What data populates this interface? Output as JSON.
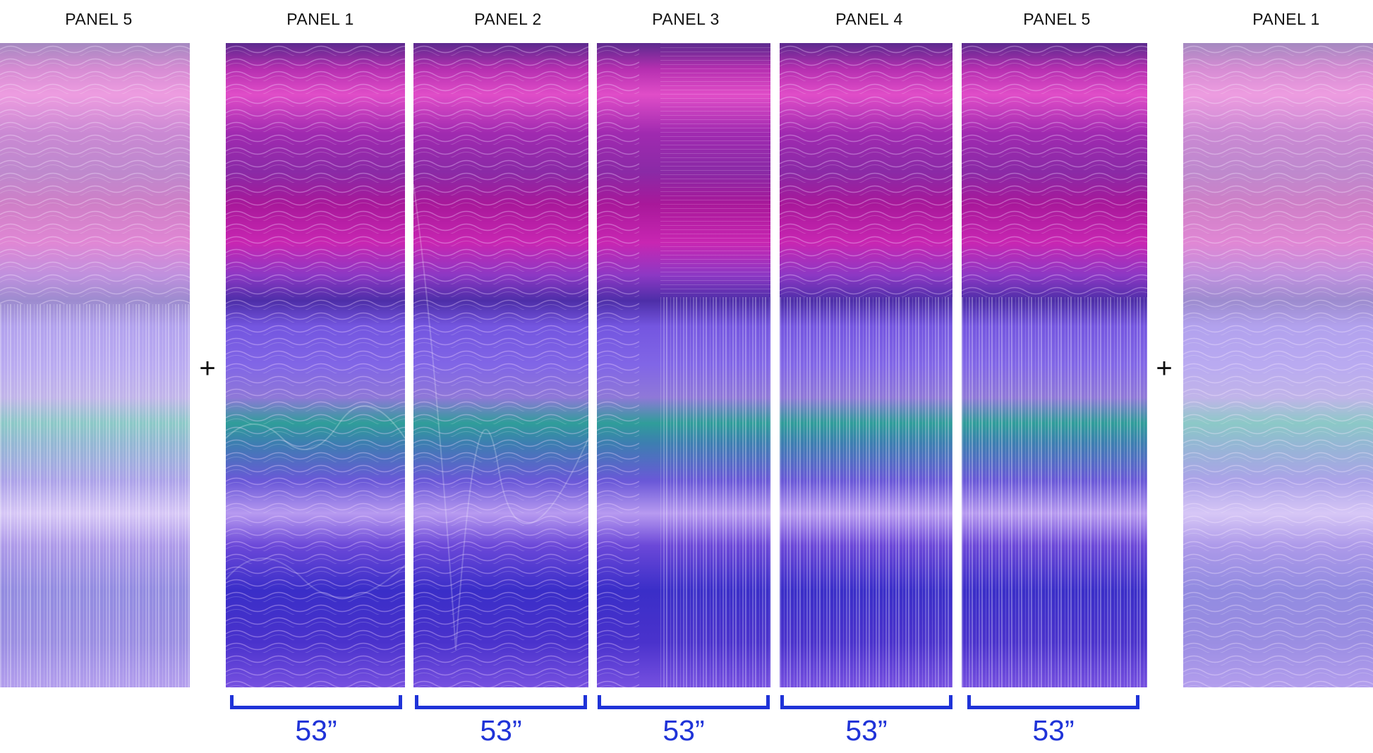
{
  "labels": {
    "left_edge": "PANEL 5",
    "p1": "PANEL 1",
    "p2": "PANEL 2",
    "p3": "PANEL 3",
    "p4": "PANEL 4",
    "p5": "PANEL 5",
    "right_edge": "PANEL 1"
  },
  "separators": {
    "left": "+",
    "right": "+"
  },
  "dimensions": {
    "p1": "53”",
    "p2": "53”",
    "p3": "53”",
    "p4": "53”",
    "p5": "53”"
  },
  "colors": {
    "magenta": "#c21fa8",
    "deep_purple": "#5a1f9a",
    "violet": "#6b4de0",
    "teal": "#2aa39a",
    "blue": "#3a2ec8",
    "dimension_blue": "#1f33d8"
  }
}
